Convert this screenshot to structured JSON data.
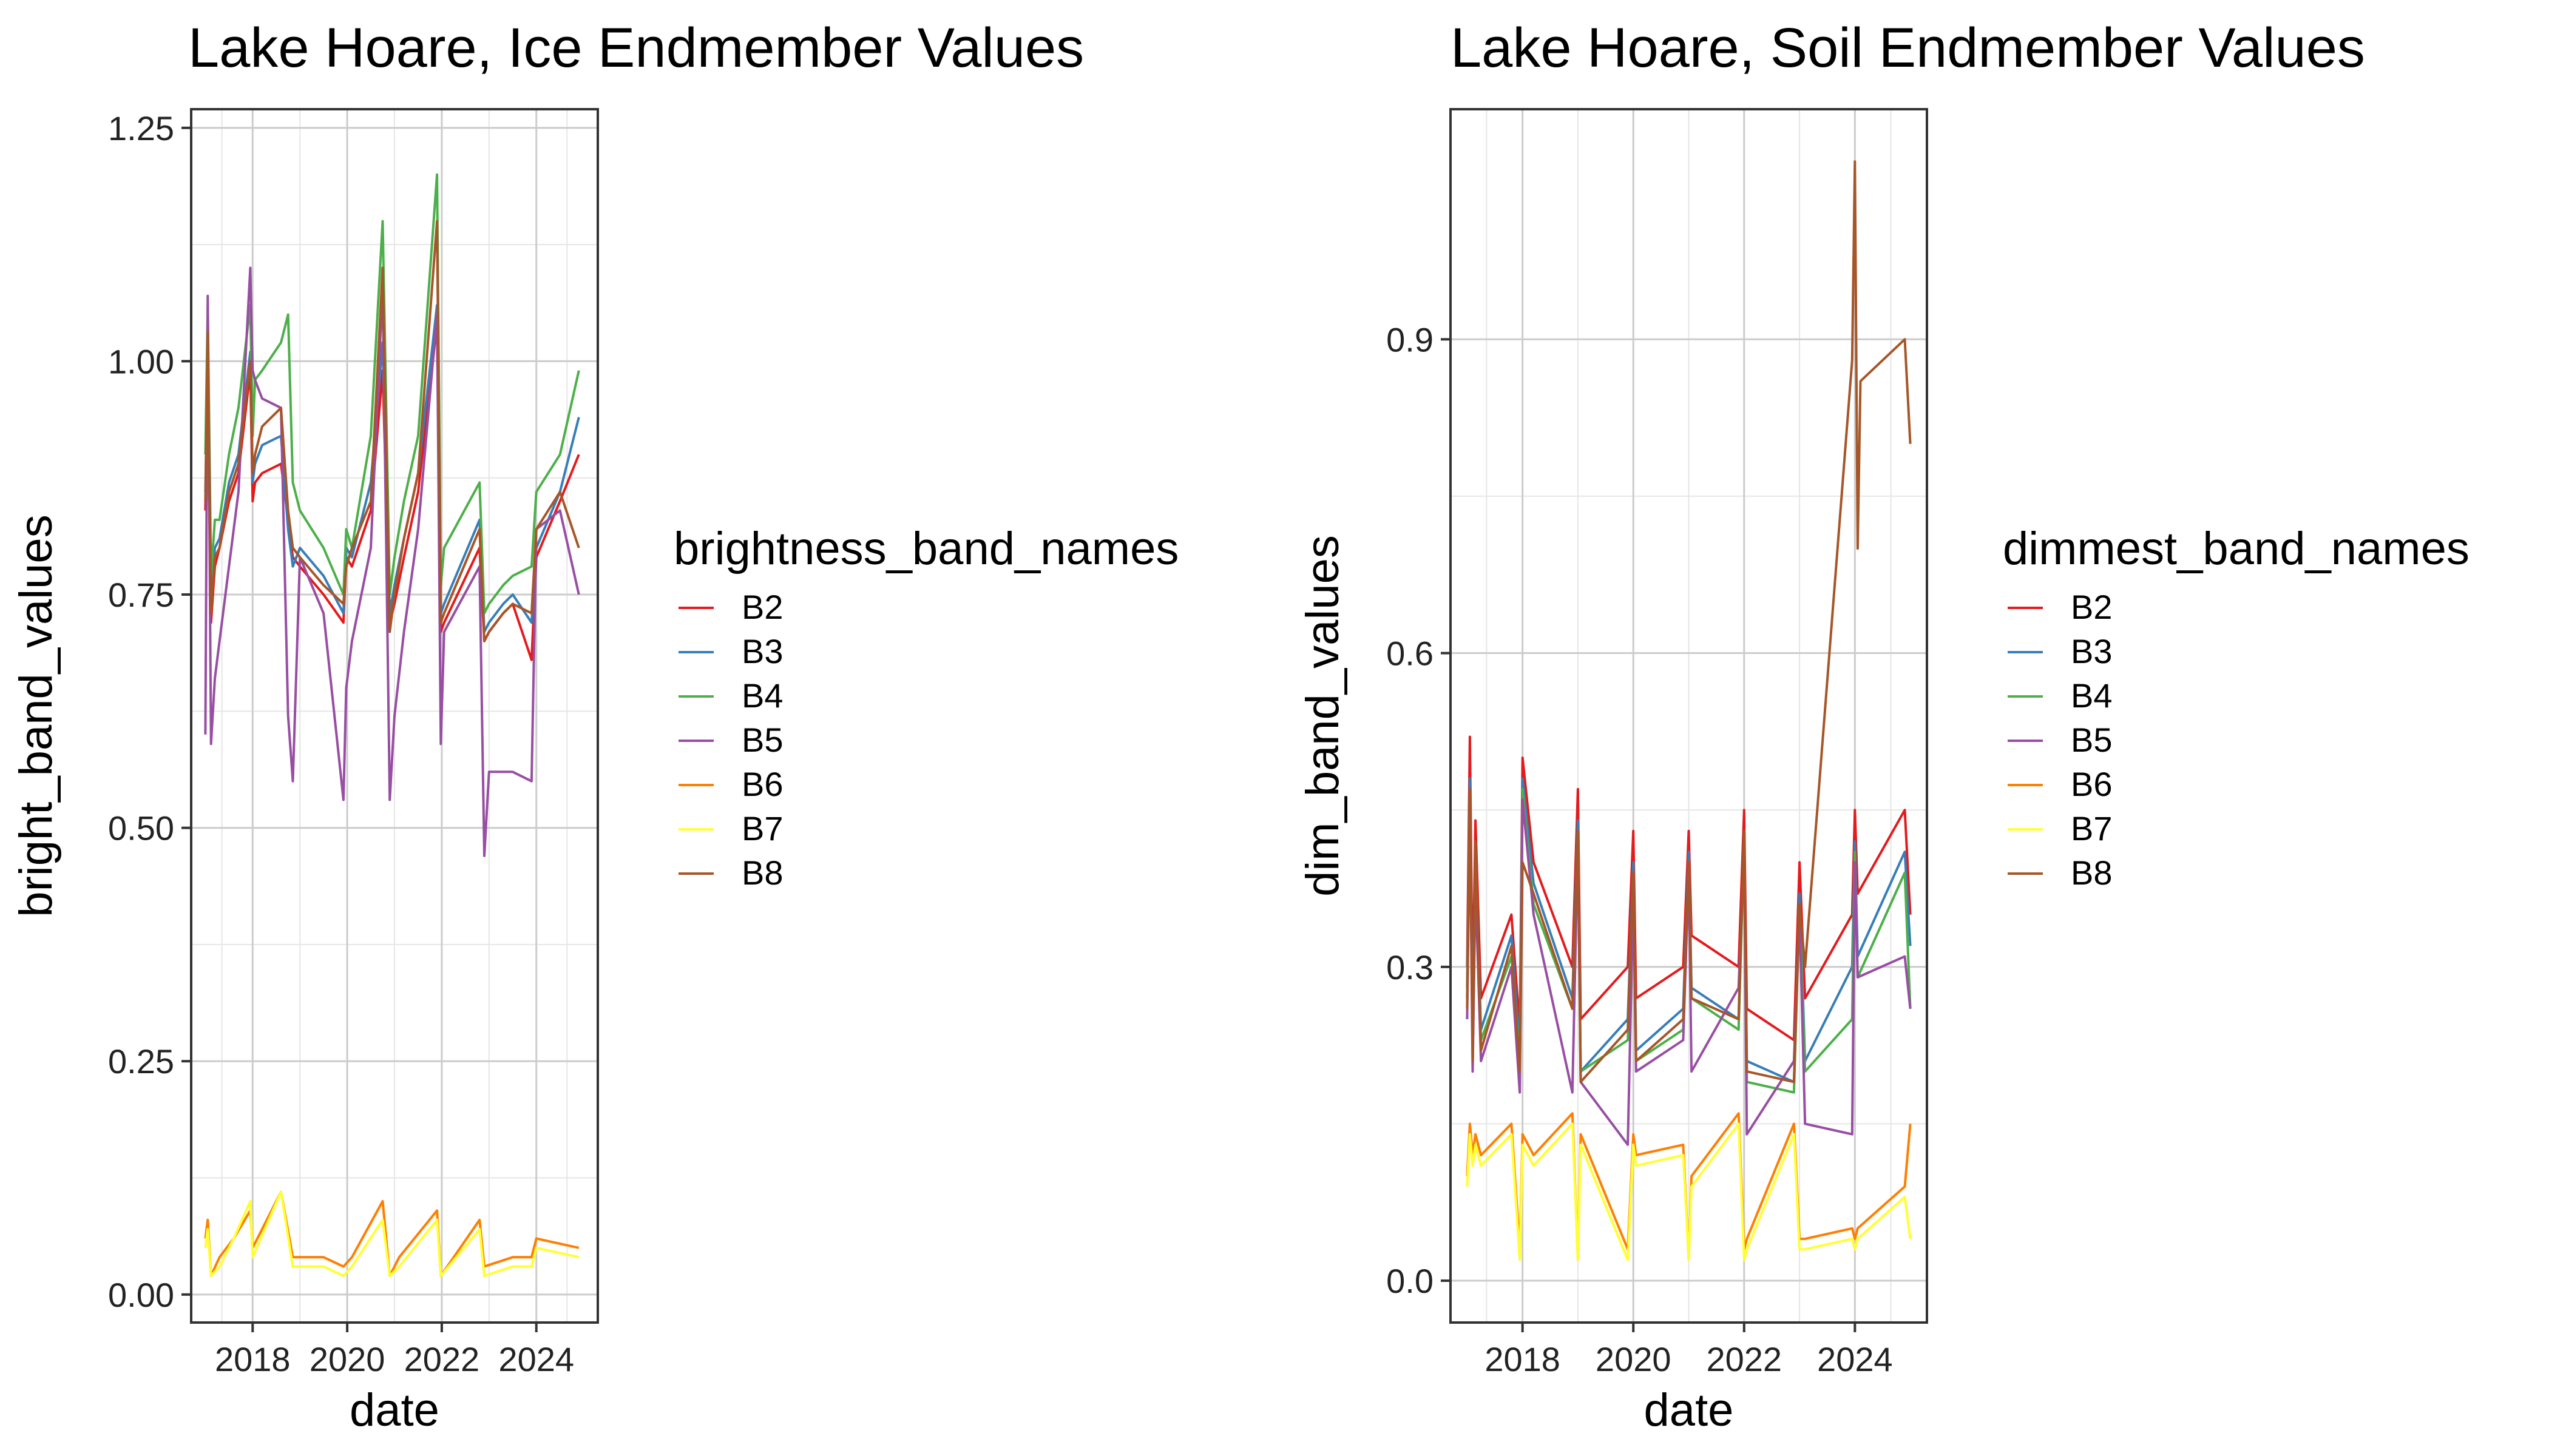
{
  "chart_data": [
    {
      "type": "line",
      "title": "Lake Hoare, Ice Endmember Values",
      "xlabel": "date",
      "ylabel": "bright_band_values",
      "xlim": [
        2016.7,
        2025.3
      ],
      "ylim": [
        -0.03,
        1.27
      ],
      "x_ticks": [
        2018,
        2020,
        2022,
        2024
      ],
      "y_ticks": [
        0.0,
        0.25,
        0.5,
        0.75,
        1.0,
        1.25
      ],
      "y_tick_labels": [
        "0.00",
        "0.25",
        "0.50",
        "0.75",
        "1.00",
        "1.25"
      ],
      "grid": true,
      "legend": {
        "title": "brightness_band_names",
        "placement": "right"
      },
      "series": [
        {
          "name": "B2",
          "color": "#E41A1C",
          "x": [
            2017.0,
            2017.05,
            2017.12,
            2017.2,
            2017.3,
            2017.5,
            2017.7,
            2017.95,
            2018.0,
            2018.05,
            2018.2,
            2018.6,
            2018.75,
            2018.85,
            2019.0,
            2019.5,
            2019.92,
            2019.98,
            2020.1,
            2020.5,
            2020.75,
            2020.9,
            2021.0,
            2021.2,
            2021.5,
            2021.9,
            2021.98,
            2022.05,
            2022.8,
            2022.9,
            2023.0,
            2023.3,
            2023.5,
            2023.9,
            2024.0,
            2024.5,
            2024.9
          ],
          "y": [
            0.84,
            0.97,
            0.72,
            0.78,
            0.8,
            0.85,
            0.88,
            0.99,
            0.85,
            0.87,
            0.88,
            0.89,
            0.83,
            0.79,
            0.78,
            0.75,
            0.72,
            0.79,
            0.78,
            0.84,
            0.99,
            0.72,
            0.74,
            0.79,
            0.86,
            1.04,
            0.71,
            0.72,
            0.8,
            0.7,
            0.71,
            0.73,
            0.74,
            0.68,
            0.79,
            0.85,
            0.9
          ]
        },
        {
          "name": "B3",
          "color": "#377EB8",
          "x": [
            2017.0,
            2017.05,
            2017.12,
            2017.2,
            2017.3,
            2017.5,
            2017.7,
            2017.95,
            2018.0,
            2018.05,
            2018.2,
            2018.6,
            2018.75,
            2018.85,
            2019.0,
            2019.5,
            2019.92,
            2019.98,
            2020.1,
            2020.5,
            2020.75,
            2020.9,
            2021.0,
            2021.2,
            2021.5,
            2021.9,
            2021.98,
            2022.05,
            2022.8,
            2022.9,
            2023.0,
            2023.3,
            2023.5,
            2023.9,
            2024.0,
            2024.5,
            2024.9
          ],
          "y": [
            0.86,
            1.0,
            0.74,
            0.8,
            0.81,
            0.87,
            0.9,
            1.01,
            0.87,
            0.89,
            0.91,
            0.92,
            0.82,
            0.78,
            0.8,
            0.77,
            0.73,
            0.8,
            0.79,
            0.87,
            1.02,
            0.73,
            0.76,
            0.81,
            0.88,
            1.06,
            0.73,
            0.74,
            0.83,
            0.71,
            0.72,
            0.74,
            0.75,
            0.72,
            0.8,
            0.86,
            0.94
          ]
        },
        {
          "name": "B4",
          "color": "#4DAF4A",
          "x": [
            2017.0,
            2017.05,
            2017.12,
            2017.2,
            2017.3,
            2017.5,
            2017.7,
            2017.95,
            2018.0,
            2018.05,
            2018.2,
            2018.6,
            2018.75,
            2018.85,
            2019.0,
            2019.5,
            2019.92,
            2019.98,
            2020.1,
            2020.5,
            2020.75,
            2020.9,
            2021.0,
            2021.2,
            2021.5,
            2021.9,
            2021.98,
            2022.05,
            2022.8,
            2022.9,
            2023.0,
            2023.3,
            2023.5,
            2023.9,
            2024.0,
            2024.5,
            2024.9
          ],
          "y": [
            0.9,
            1.06,
            0.77,
            0.83,
            0.83,
            0.9,
            0.95,
            1.06,
            0.92,
            0.98,
            0.99,
            1.02,
            1.05,
            0.87,
            0.84,
            0.8,
            0.75,
            0.82,
            0.8,
            0.92,
            1.15,
            0.75,
            0.79,
            0.85,
            0.92,
            1.2,
            0.76,
            0.8,
            0.87,
            0.73,
            0.74,
            0.76,
            0.77,
            0.78,
            0.86,
            0.9,
            0.99
          ]
        },
        {
          "name": "B5",
          "color": "#984EA3",
          "x": [
            2017.0,
            2017.05,
            2017.12,
            2017.2,
            2017.3,
            2017.5,
            2017.7,
            2017.95,
            2018.0,
            2018.05,
            2018.2,
            2018.6,
            2018.75,
            2018.85,
            2019.0,
            2019.5,
            2019.92,
            2019.98,
            2020.1,
            2020.5,
            2020.75,
            2020.9,
            2021.0,
            2021.2,
            2021.5,
            2021.9,
            2021.98,
            2022.05,
            2022.8,
            2022.9,
            2023.0,
            2023.3,
            2023.5,
            2023.9,
            2024.0,
            2024.5,
            2024.9
          ],
          "y": [
            0.6,
            1.07,
            0.59,
            0.66,
            0.7,
            0.78,
            0.86,
            1.1,
            0.99,
            0.98,
            0.96,
            0.95,
            0.62,
            0.55,
            0.79,
            0.73,
            0.53,
            0.65,
            0.7,
            0.8,
            1.08,
            0.53,
            0.62,
            0.71,
            0.82,
            1.05,
            0.59,
            0.71,
            0.78,
            0.47,
            0.56,
            0.56,
            0.56,
            0.55,
            0.82,
            0.84,
            0.75
          ]
        },
        {
          "name": "B6",
          "color": "#FF7F00",
          "x": [
            2017.0,
            2017.05,
            2017.12,
            2017.3,
            2017.6,
            2017.95,
            2018.0,
            2018.6,
            2018.85,
            2019.5,
            2019.92,
            2020.1,
            2020.75,
            2020.9,
            2021.1,
            2021.9,
            2021.98,
            2022.8,
            2022.9,
            2023.5,
            2023.9,
            2024.0,
            2024.9
          ],
          "y": [
            0.06,
            0.08,
            0.02,
            0.04,
            0.06,
            0.09,
            0.05,
            0.11,
            0.04,
            0.04,
            0.03,
            0.04,
            0.1,
            0.02,
            0.04,
            0.09,
            0.02,
            0.08,
            0.03,
            0.04,
            0.04,
            0.06,
            0.05
          ]
        },
        {
          "name": "B7",
          "color": "#FFFF33",
          "x": [
            2017.0,
            2017.05,
            2017.12,
            2017.3,
            2017.6,
            2017.95,
            2018.0,
            2018.6,
            2018.85,
            2019.5,
            2019.92,
            2020.1,
            2020.75,
            2020.9,
            2021.1,
            2021.9,
            2021.98,
            2022.8,
            2022.9,
            2023.5,
            2023.9,
            2024.0,
            2024.9
          ],
          "y": [
            0.05,
            0.07,
            0.02,
            0.03,
            0.06,
            0.1,
            0.04,
            0.11,
            0.03,
            0.03,
            0.02,
            0.03,
            0.08,
            0.02,
            0.03,
            0.08,
            0.02,
            0.07,
            0.02,
            0.03,
            0.03,
            0.05,
            0.04
          ]
        },
        {
          "name": "B8",
          "color": "#A65628",
          "x": [
            2017.0,
            2017.05,
            2017.12,
            2017.2,
            2017.3,
            2017.5,
            2017.7,
            2017.95,
            2018.0,
            2018.05,
            2018.2,
            2018.6,
            2018.75,
            2018.85,
            2019.0,
            2019.5,
            2019.92,
            2019.98,
            2020.1,
            2020.5,
            2020.75,
            2020.9,
            2021.0,
            2021.2,
            2021.5,
            2021.9,
            2021.98,
            2022.05,
            2022.8,
            2022.9,
            2023.0,
            2023.3,
            2023.5,
            2023.9,
            2024.0,
            2024.5,
            2024.9
          ],
          "y": [
            0.85,
            1.03,
            0.73,
            0.79,
            0.8,
            0.86,
            0.89,
            1.0,
            0.88,
            0.9,
            0.93,
            0.95,
            0.84,
            0.8,
            0.79,
            0.76,
            0.74,
            0.78,
            0.8,
            0.85,
            1.1,
            0.71,
            0.75,
            0.81,
            0.88,
            1.15,
            0.72,
            0.73,
            0.82,
            0.7,
            0.71,
            0.73,
            0.74,
            0.73,
            0.82,
            0.86,
            0.8
          ]
        }
      ]
    },
    {
      "type": "line",
      "title": "Lake Hoare, Soil Endmember Values",
      "xlabel": "date",
      "ylabel": "dim_band_values",
      "xlim": [
        2016.7,
        2025.3
      ],
      "ylim": [
        -0.04,
        1.12
      ],
      "x_ticks": [
        2018,
        2020,
        2022,
        2024
      ],
      "y_ticks": [
        0.0,
        0.3,
        0.6,
        0.9
      ],
      "y_tick_labels": [
        "0.0",
        "0.3",
        "0.6",
        "0.9"
      ],
      "grid": true,
      "legend": {
        "title": "dimmest_band_names",
        "placement": "right"
      },
      "series": [
        {
          "name": "B2",
          "color": "#E41A1C",
          "x": [
            2017.0,
            2017.05,
            2017.1,
            2017.15,
            2017.25,
            2017.8,
            2017.95,
            2018.0,
            2018.2,
            2018.9,
            2019.0,
            2019.05,
            2019.9,
            2020.0,
            2020.05,
            2020.9,
            2021.0,
            2021.05,
            2021.9,
            2022.0,
            2022.05,
            2022.9,
            2023.0,
            2023.1,
            2023.95,
            2024.0,
            2024.05,
            2024.9,
            2025.0
          ],
          "y": [
            0.3,
            0.52,
            0.27,
            0.44,
            0.27,
            0.35,
            0.24,
            0.5,
            0.4,
            0.3,
            0.47,
            0.25,
            0.3,
            0.43,
            0.27,
            0.3,
            0.43,
            0.33,
            0.3,
            0.45,
            0.26,
            0.23,
            0.4,
            0.27,
            0.35,
            0.45,
            0.37,
            0.45,
            0.35
          ]
        },
        {
          "name": "B3",
          "color": "#377EB8",
          "x": [
            2017.0,
            2017.05,
            2017.1,
            2017.15,
            2017.25,
            2017.8,
            2017.95,
            2018.0,
            2018.2,
            2018.9,
            2019.0,
            2019.05,
            2019.9,
            2020.0,
            2020.05,
            2020.9,
            2021.0,
            2021.05,
            2021.9,
            2022.0,
            2022.05,
            2022.9,
            2023.0,
            2023.1,
            2023.95,
            2024.0,
            2024.05,
            2024.9,
            2025.0
          ],
          "y": [
            0.28,
            0.48,
            0.23,
            0.41,
            0.24,
            0.33,
            0.22,
            0.48,
            0.38,
            0.27,
            0.44,
            0.2,
            0.25,
            0.4,
            0.22,
            0.26,
            0.41,
            0.28,
            0.25,
            0.43,
            0.21,
            0.19,
            0.37,
            0.21,
            0.3,
            0.42,
            0.31,
            0.41,
            0.32
          ]
        },
        {
          "name": "B4",
          "color": "#4DAF4A",
          "x": [
            2017.0,
            2017.05,
            2017.1,
            2017.15,
            2017.25,
            2017.8,
            2017.95,
            2018.0,
            2018.2,
            2018.9,
            2019.0,
            2019.05,
            2019.9,
            2020.0,
            2020.05,
            2020.9,
            2021.0,
            2021.05,
            2021.9,
            2022.0,
            2022.05,
            2022.9,
            2023.0,
            2023.1,
            2023.95,
            2024.0,
            2024.05,
            2024.9,
            2025.0
          ],
          "y": [
            0.27,
            0.46,
            0.22,
            0.4,
            0.23,
            0.31,
            0.21,
            0.47,
            0.36,
            0.26,
            0.43,
            0.2,
            0.23,
            0.38,
            0.21,
            0.24,
            0.4,
            0.27,
            0.24,
            0.42,
            0.19,
            0.18,
            0.36,
            0.2,
            0.25,
            0.41,
            0.29,
            0.39,
            0.26
          ]
        },
        {
          "name": "B5",
          "color": "#984EA3",
          "x": [
            2017.0,
            2017.05,
            2017.1,
            2017.15,
            2017.25,
            2017.8,
            2017.95,
            2018.0,
            2018.2,
            2018.9,
            2019.0,
            2019.05,
            2019.9,
            2020.0,
            2020.05,
            2020.9,
            2021.0,
            2021.05,
            2021.9,
            2022.0,
            2022.05,
            2022.9,
            2023.0,
            2023.1,
            2023.95,
            2024.0,
            2024.05,
            2024.9,
            2025.0
          ],
          "y": [
            0.25,
            0.45,
            0.2,
            0.38,
            0.21,
            0.3,
            0.18,
            0.46,
            0.35,
            0.18,
            0.42,
            0.19,
            0.13,
            0.37,
            0.2,
            0.23,
            0.39,
            0.2,
            0.28,
            0.41,
            0.14,
            0.21,
            0.35,
            0.15,
            0.14,
            0.4,
            0.29,
            0.31,
            0.26
          ]
        },
        {
          "name": "B6",
          "color": "#FF7F00",
          "x": [
            2017.0,
            2017.05,
            2017.1,
            2017.15,
            2017.25,
            2017.8,
            2017.95,
            2018.0,
            2018.2,
            2018.9,
            2019.0,
            2019.05,
            2019.9,
            2020.0,
            2020.05,
            2020.9,
            2021.0,
            2021.05,
            2021.9,
            2022.0,
            2022.05,
            2022.9,
            2023.0,
            2023.1,
            2023.95,
            2024.0,
            2024.05,
            2024.9,
            2025.0
          ],
          "y": [
            0.1,
            0.15,
            0.12,
            0.14,
            0.12,
            0.15,
            0.03,
            0.14,
            0.12,
            0.16,
            0.02,
            0.14,
            0.03,
            0.14,
            0.12,
            0.13,
            0.02,
            0.1,
            0.16,
            0.03,
            0.04,
            0.15,
            0.04,
            0.04,
            0.05,
            0.04,
            0.05,
            0.09,
            0.15
          ]
        },
        {
          "name": "B7",
          "color": "#FFFF33",
          "x": [
            2017.0,
            2017.05,
            2017.1,
            2017.15,
            2017.25,
            2017.8,
            2017.95,
            2018.0,
            2018.2,
            2018.9,
            2019.0,
            2019.05,
            2019.9,
            2020.0,
            2020.05,
            2020.9,
            2021.0,
            2021.05,
            2021.9,
            2022.0,
            2022.05,
            2022.9,
            2023.0,
            2023.1,
            2023.95,
            2024.0,
            2024.05,
            2024.9,
            2025.0
          ],
          "y": [
            0.09,
            0.14,
            0.11,
            0.13,
            0.11,
            0.14,
            0.02,
            0.13,
            0.11,
            0.15,
            0.02,
            0.13,
            0.02,
            0.13,
            0.11,
            0.12,
            0.02,
            0.09,
            0.15,
            0.02,
            0.03,
            0.14,
            0.03,
            0.03,
            0.04,
            0.03,
            0.04,
            0.08,
            0.04
          ]
        },
        {
          "name": "B8",
          "color": "#A65628",
          "x": [
            2017.0,
            2017.05,
            2017.1,
            2017.15,
            2017.25,
            2017.8,
            2017.95,
            2018.0,
            2018.2,
            2018.9,
            2019.0,
            2019.05,
            2019.9,
            2020.0,
            2020.05,
            2020.9,
            2021.0,
            2021.05,
            2021.9,
            2022.0,
            2022.05,
            2022.9,
            2023.0,
            2023.1,
            2023.95,
            2024.0,
            2024.05,
            2024.1,
            2024.9,
            2025.0
          ],
          "y": [
            0.26,
            0.47,
            0.21,
            0.42,
            0.22,
            0.32,
            0.2,
            0.4,
            0.37,
            0.26,
            0.43,
            0.19,
            0.24,
            0.39,
            0.21,
            0.25,
            0.4,
            0.27,
            0.25,
            0.43,
            0.2,
            0.19,
            0.36,
            0.3,
            0.88,
            1.07,
            0.7,
            0.86,
            0.9,
            0.8
          ]
        }
      ]
    }
  ]
}
